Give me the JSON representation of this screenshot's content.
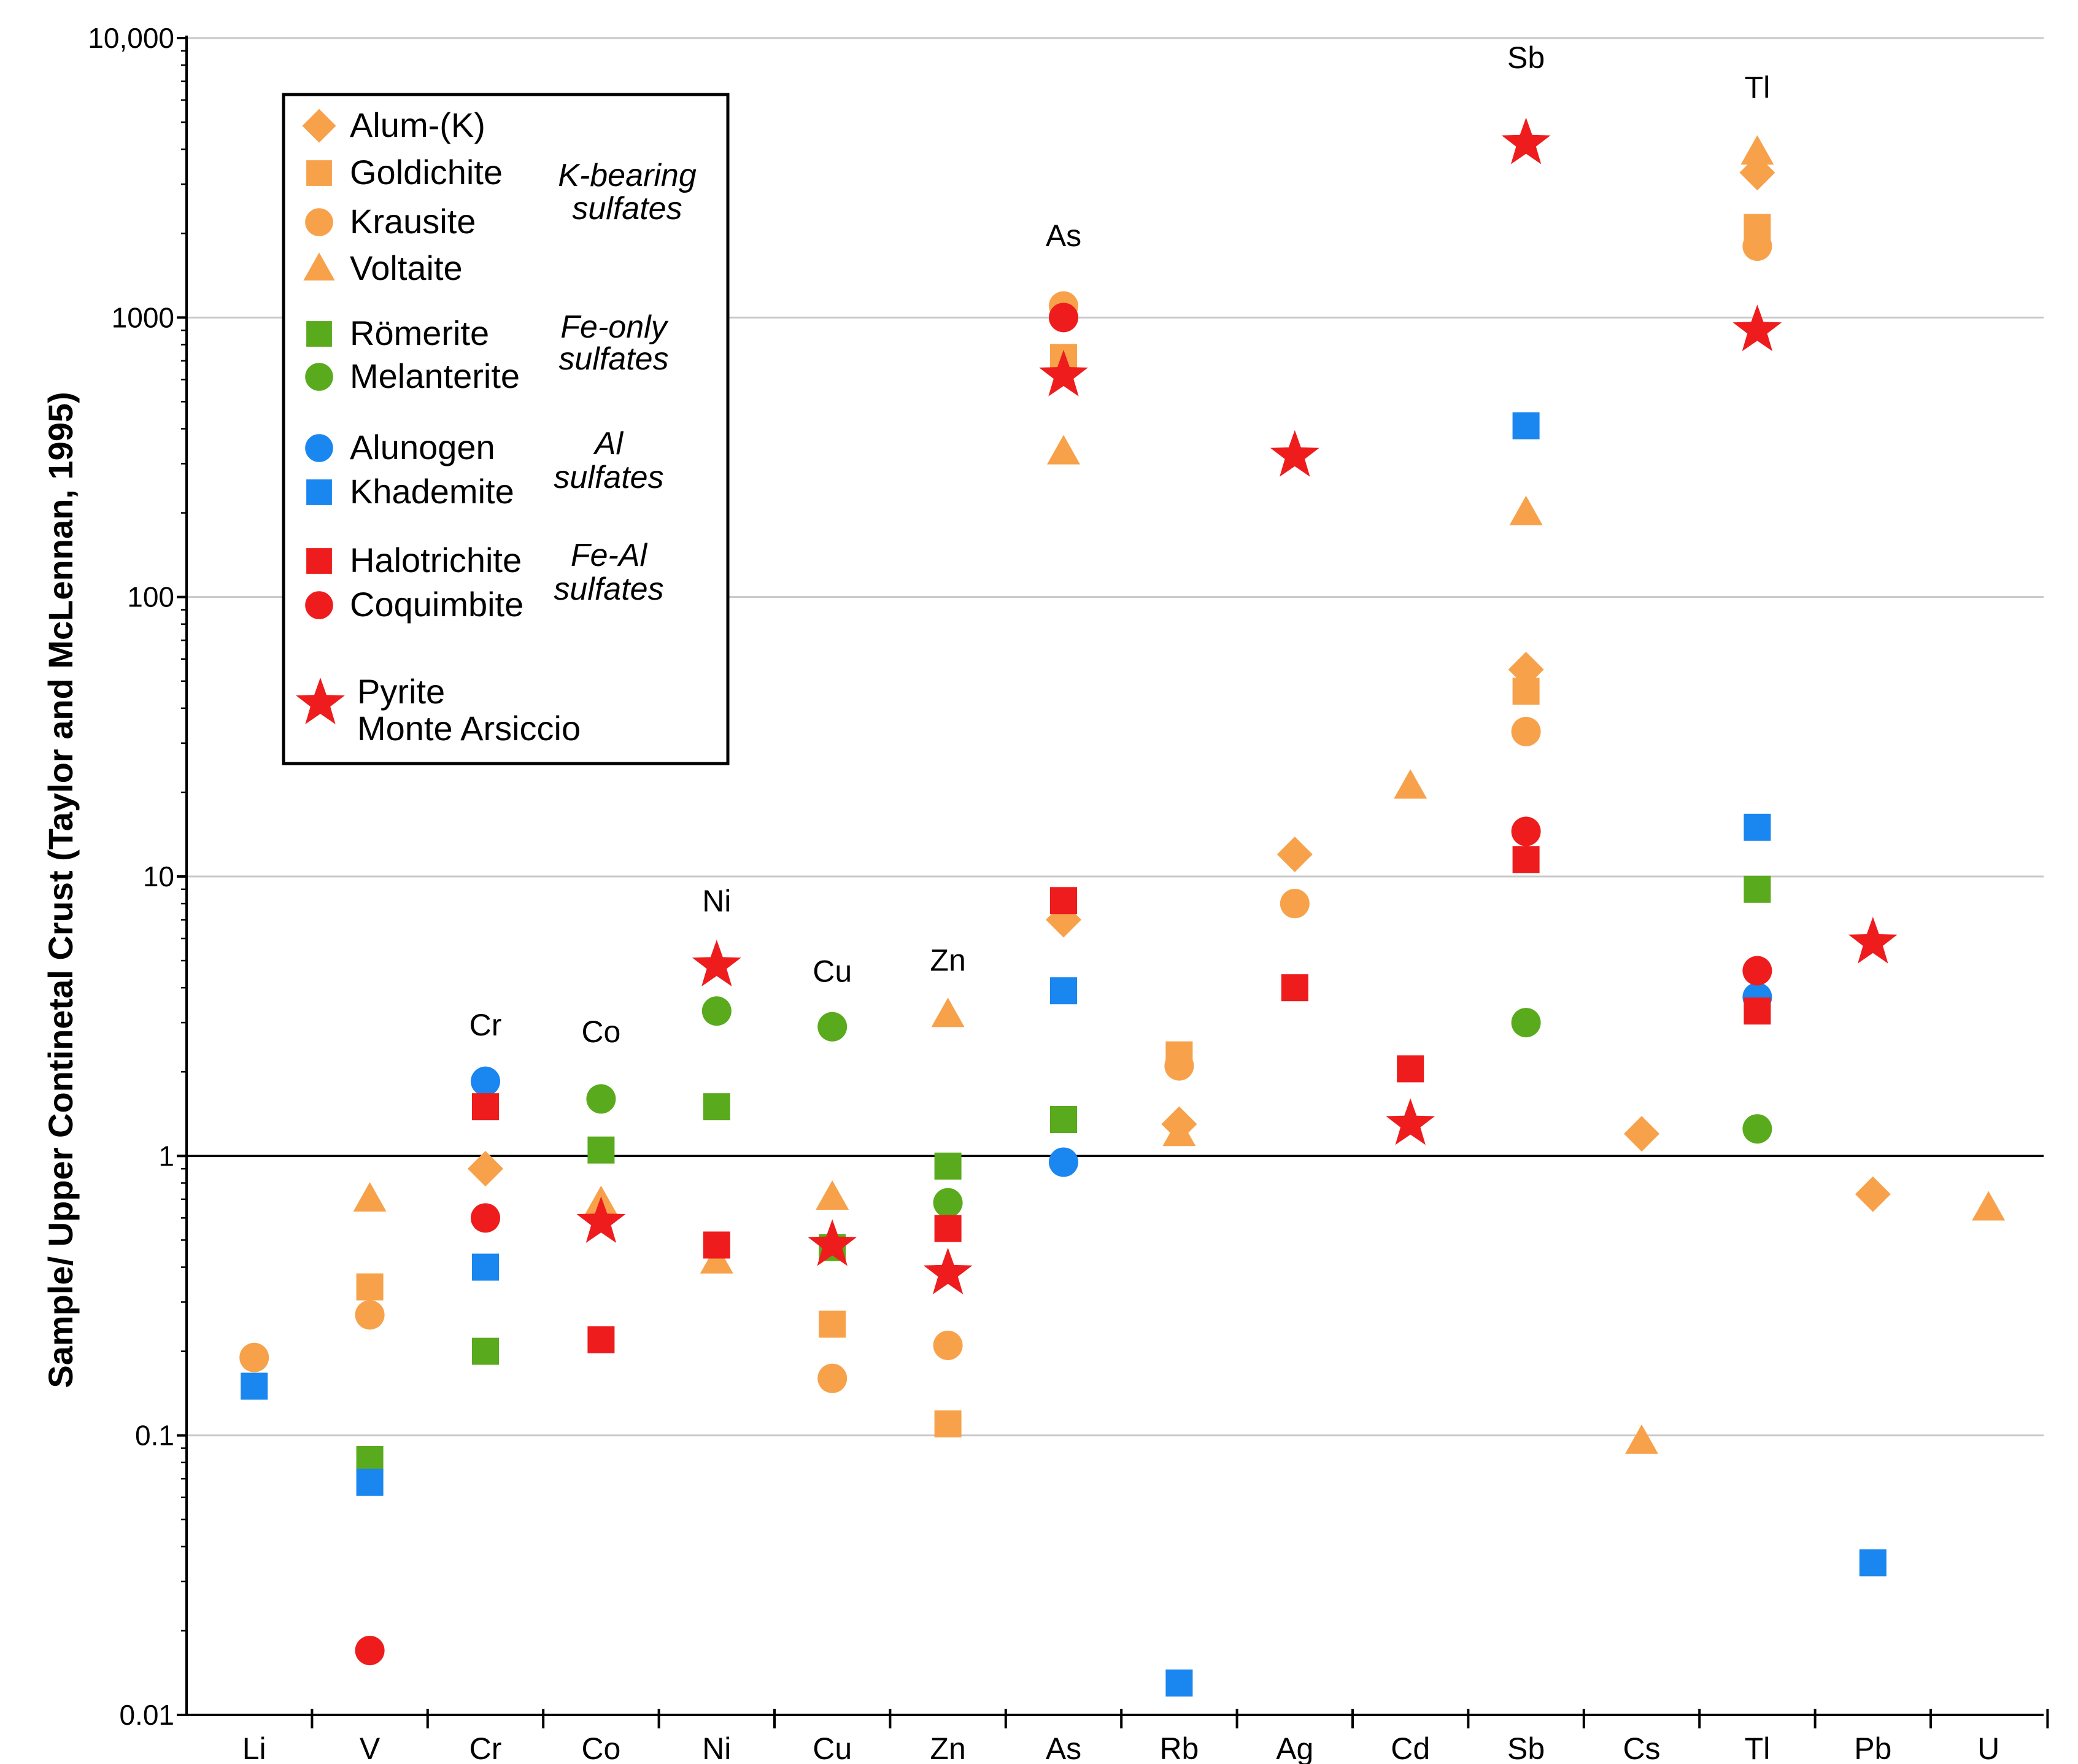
{
  "chart_data": {
    "type": "scatter",
    "title": "",
    "xlabel": "",
    "ylabel": "Sample/ Upper Continetal Crust (Taylor and McLennan, 1995)",
    "yscale": "log",
    "ylim": [
      0.01,
      10000
    ],
    "grid": true,
    "reference_line": 1,
    "categories": [
      "Li",
      "V",
      "Cr",
      "Co",
      "Ni",
      "Cu",
      "Zn",
      "As",
      "Rb",
      "Ag",
      "Cd",
      "Sb",
      "Cs",
      "Tl",
      "Pb",
      "U"
    ],
    "y_ticks": [
      {
        "value": 0.01,
        "label": "0.01"
      },
      {
        "value": 0.1,
        "label": "0.1"
      },
      {
        "value": 1,
        "label": "1"
      },
      {
        "value": 10,
        "label": "10"
      },
      {
        "value": 100,
        "label": "100"
      },
      {
        "value": 1000,
        "label": "1000"
      },
      {
        "value": 10000,
        "label": "10,000"
      }
    ],
    "annotations": [
      {
        "text": "Cr",
        "category": "Cr",
        "y": 2.7
      },
      {
        "text": "Co",
        "category": "Co",
        "y": 2.55
      },
      {
        "text": "Ni",
        "category": "Ni",
        "y": 7.5
      },
      {
        "text": "Cu",
        "category": "Cu",
        "y": 4.2
      },
      {
        "text": "Zn",
        "category": "Zn",
        "y": 4.6
      },
      {
        "text": "As",
        "category": "As",
        "y": 1800
      },
      {
        "text": "Sb",
        "category": "Sb",
        "y": 7800
      },
      {
        "text": "Tl",
        "category": "Tl",
        "y": 6100
      }
    ],
    "legend": {
      "placement": "top-left",
      "groups": [
        {
          "label": "K-bearing sulfates",
          "lines": [
            "K-bearing",
            "sulfates"
          ],
          "entries": [
            "Alum-(K)",
            "Goldichite",
            "Krausite",
            "Voltaite"
          ]
        },
        {
          "label": "Fe-only sulfates",
          "lines": [
            "Fe-only",
            "sulfates"
          ],
          "entries": [
            "Römerite",
            "Melanterite"
          ]
        },
        {
          "label": "Al sulfates",
          "lines": [
            "Al",
            "sulfates"
          ],
          "entries": [
            "Alunogen",
            "Khademite"
          ]
        },
        {
          "label": "Fe-Al sulfates",
          "lines": [
            "Fe-Al",
            "sulfates"
          ],
          "entries": [
            "Halotrichite",
            "Coquimbite"
          ]
        }
      ],
      "pyrite_lines": [
        "Pyrite",
        "Monte Arsiccio"
      ]
    },
    "series": [
      {
        "name": "Alum-(K)",
        "marker": "diamond",
        "color": "#f7a24b",
        "points": [
          {
            "x": "Cr",
            "y": 0.9
          },
          {
            "x": "As",
            "y": 7
          },
          {
            "x": "Rb",
            "y": 1.3
          },
          {
            "x": "Ag",
            "y": 12
          },
          {
            "x": "Sb",
            "y": 55
          },
          {
            "x": "Cs",
            "y": 1.2
          },
          {
            "x": "Tl",
            "y": 3300
          },
          {
            "x": "Pb",
            "y": 0.73
          }
        ]
      },
      {
        "name": "Goldichite",
        "marker": "square",
        "color": "#f7a24b",
        "points": [
          {
            "x": "V",
            "y": 0.34
          },
          {
            "x": "Cu",
            "y": 0.25
          },
          {
            "x": "Zn",
            "y": 0.11
          },
          {
            "x": "As",
            "y": 720
          },
          {
            "x": "Rb",
            "y": 2.3
          },
          {
            "x": "Sb",
            "y": 46
          },
          {
            "x": "Tl",
            "y": 2100
          }
        ]
      },
      {
        "name": "Krausite",
        "marker": "circle",
        "color": "#f7a24b",
        "points": [
          {
            "x": "Li",
            "y": 0.19
          },
          {
            "x": "V",
            "y": 0.27
          },
          {
            "x": "Cu",
            "y": 0.16
          },
          {
            "x": "Zn",
            "y": 0.21
          },
          {
            "x": "As",
            "y": 1100
          },
          {
            "x": "Rb",
            "y": 2.1
          },
          {
            "x": "Ag",
            "y": 8
          },
          {
            "x": "Sb",
            "y": 33
          },
          {
            "x": "Tl",
            "y": 1800
          }
        ]
      },
      {
        "name": "Voltaite",
        "marker": "triangle",
        "color": "#f7a24b",
        "points": [
          {
            "x": "V",
            "y": 0.7
          },
          {
            "x": "Co",
            "y": 0.68
          },
          {
            "x": "Ni",
            "y": 0.42
          },
          {
            "x": "Cu",
            "y": 0.71
          },
          {
            "x": "Zn",
            "y": 3.2
          },
          {
            "x": "As",
            "y": 330
          },
          {
            "x": "Rb",
            "y": 1.2
          },
          {
            "x": "Cd",
            "y": 21
          },
          {
            "x": "Sb",
            "y": 200
          },
          {
            "x": "Cs",
            "y": 0.095
          },
          {
            "x": "Tl",
            "y": 3900
          },
          {
            "x": "U",
            "y": 0.65
          }
        ]
      },
      {
        "name": "Römerite",
        "marker": "square",
        "color": "#5aaa1e",
        "points": [
          {
            "x": "V",
            "y": 0.082
          },
          {
            "x": "Cr",
            "y": 0.2
          },
          {
            "x": "Co",
            "y": 1.05
          },
          {
            "x": "Ni",
            "y": 1.5
          },
          {
            "x": "Cu",
            "y": 0.47
          },
          {
            "x": "Zn",
            "y": 0.92
          },
          {
            "x": "As",
            "y": 1.35
          },
          {
            "x": "Tl",
            "y": 9
          }
        ]
      },
      {
        "name": "Melanterite",
        "marker": "circle",
        "color": "#5aaa1e",
        "points": [
          {
            "x": "Co",
            "y": 1.6
          },
          {
            "x": "Ni",
            "y": 3.3
          },
          {
            "x": "Cu",
            "y": 2.9
          },
          {
            "x": "Zn",
            "y": 0.68
          },
          {
            "x": "Sb",
            "y": 3
          },
          {
            "x": "Tl",
            "y": 1.25
          }
        ]
      },
      {
        "name": "Alunogen",
        "marker": "circle",
        "color": "#1a86f0",
        "points": [
          {
            "x": "Cr",
            "y": 1.85
          },
          {
            "x": "As",
            "y": 0.95
          },
          {
            "x": "Tl",
            "y": 3.7
          }
        ]
      },
      {
        "name": "Khademite",
        "marker": "square",
        "color": "#1a86f0",
        "points": [
          {
            "x": "Li",
            "y": 0.15
          },
          {
            "x": "V",
            "y": 0.068
          },
          {
            "x": "Cr",
            "y": 0.4
          },
          {
            "x": "As",
            "y": 3.9
          },
          {
            "x": "Rb",
            "y": 0.013
          },
          {
            "x": "Sb",
            "y": 410
          },
          {
            "x": "Tl",
            "y": 15
          },
          {
            "x": "Pb",
            "y": 0.035
          }
        ]
      },
      {
        "name": "Halotrichite",
        "marker": "square",
        "color": "#ee1c1c",
        "points": [
          {
            "x": "Cr",
            "y": 1.5
          },
          {
            "x": "Co",
            "y": 0.22
          },
          {
            "x": "Ni",
            "y": 0.48
          },
          {
            "x": "Zn",
            "y": 0.55
          },
          {
            "x": "As",
            "y": 8.2
          },
          {
            "x": "Ag",
            "y": 4
          },
          {
            "x": "Cd",
            "y": 2.05
          },
          {
            "x": "Sb",
            "y": 11.5
          },
          {
            "x": "Tl",
            "y": 3.3
          }
        ]
      },
      {
        "name": "Coquimbite",
        "marker": "circle",
        "color": "#ee1c1c",
        "points": [
          {
            "x": "V",
            "y": 0.017
          },
          {
            "x": "Cr",
            "y": 0.6
          },
          {
            "x": "As",
            "y": 1000
          },
          {
            "x": "Sb",
            "y": 14.5
          },
          {
            "x": "Tl",
            "y": 4.6
          }
        ]
      },
      {
        "name": "Pyrite Monte Arsiccio",
        "marker": "star",
        "color": "#ee1c1c",
        "points": [
          {
            "x": "Co",
            "y": 0.58
          },
          {
            "x": "Ni",
            "y": 4.8
          },
          {
            "x": "Cu",
            "y": 0.48
          },
          {
            "x": "Zn",
            "y": 0.38
          },
          {
            "x": "As",
            "y": 620
          },
          {
            "x": "Ag",
            "y": 320
          },
          {
            "x": "Cd",
            "y": 1.3
          },
          {
            "x": "Sb",
            "y": 4200
          },
          {
            "x": "Tl",
            "y": 900
          },
          {
            "x": "Pb",
            "y": 5.8
          }
        ]
      }
    ]
  }
}
